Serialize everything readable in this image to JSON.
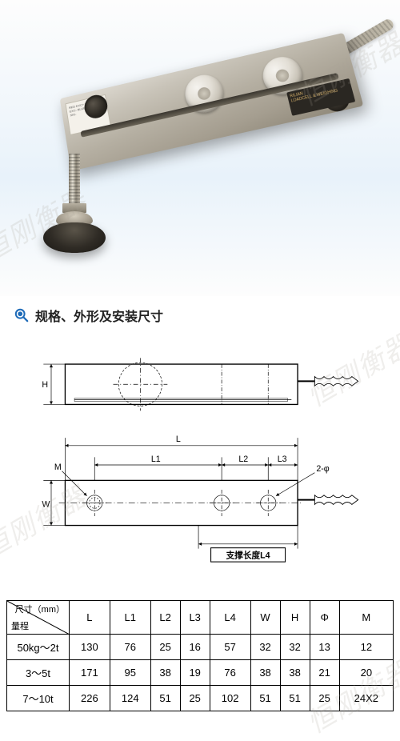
{
  "product_photo": {
    "wire_label": "RED     EXC+\nYELLOW  EXC-\nBLUE    SIG+\nWHITE   SIG-",
    "brand_line1": "RILIAN",
    "brand_line2": "LOADCELL & WEIGHING",
    "watermark_text": "恒刚衡器"
  },
  "section": {
    "title": "规格、外形及安装尺寸"
  },
  "drawing": {
    "labels": {
      "H": "H",
      "L": "L",
      "L1": "L1",
      "L2": "L2",
      "L3": "L3",
      "M": "M",
      "W": "W",
      "phi": "2-φ",
      "support": "支撑长度L4"
    },
    "stroke": "#000000",
    "dim_stroke": "#000000",
    "body_stroke_width": 1,
    "dim_stroke_width": 0.7,
    "font_size": 11
  },
  "table": {
    "corner": {
      "top": "尺寸（mm）",
      "bottom": "量程"
    },
    "columns": [
      "L",
      "L1",
      "L2",
      "L3",
      "L4",
      "W",
      "H",
      "Φ",
      "M"
    ],
    "rows": [
      {
        "range": "50kg～2t",
        "values": [
          "130",
          "76",
          "25",
          "16",
          "57",
          "32",
          "32",
          "13",
          "12"
        ]
      },
      {
        "range": "3～5t",
        "values": [
          "171",
          "95",
          "38",
          "19",
          "76",
          "38",
          "38",
          "21",
          "20"
        ]
      },
      {
        "range": "7～10t",
        "values": [
          "226",
          "124",
          "51",
          "25",
          "102",
          "51",
          "51",
          "25",
          "24X2"
        ]
      }
    ],
    "col_widths": {
      "corner": 78,
      "data": 45
    }
  },
  "colors": {
    "text": "#222222",
    "table_border": "#000000",
    "magnifier": "#1e6bb8"
  }
}
